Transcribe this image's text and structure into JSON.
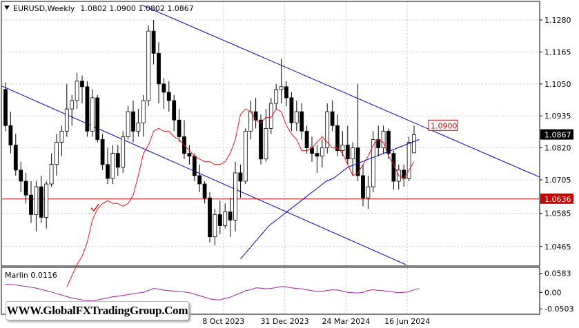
{
  "header": {
    "symbol": "EURUSD,Weekly",
    "ohlc": "1.0802 1.0900 1.0802 1.0867"
  },
  "watermark": "WWW.GlobalFXTradingGroup.Com",
  "indicator": {
    "label": "Marlin 0.0116"
  },
  "colors": {
    "candle": "#000000",
    "ma": "#e8141b",
    "trend": "#0000cc",
    "level": "#cc0000",
    "osc": "#a020a0",
    "grid": "#c8c8c8"
  },
  "chart_data": {
    "type": "candlestick",
    "price_ylim": [
      1.0405,
      1.1332
    ],
    "price_ticks": [
      "1.1280",
      "1.1165",
      "1.1050",
      "1.0935",
      "1.0820",
      "1.0705",
      "1.0585",
      "1.0465"
    ],
    "x_labels": [
      "8 Oct 2023",
      "31 Dec 2023",
      "24 Mar 2024",
      "16 Jun 2024"
    ],
    "x_label_index": [
      47,
      59,
      71,
      83
    ],
    "current_price": "1.0867",
    "level_label": "1.0636",
    "level_value": 1.0636,
    "target_label": "1.0900",
    "target_value": 1.09,
    "candles": [
      [
        1.103,
        1.1055,
        1.088,
        1.09
      ],
      [
        1.09,
        1.095,
        1.08,
        1.083
      ],
      [
        1.083,
        1.087,
        1.072,
        1.074
      ],
      [
        1.074,
        1.077,
        1.066,
        1.07
      ],
      [
        1.07,
        1.073,
        1.062,
        1.065
      ],
      [
        1.065,
        1.07,
        1.055,
        1.058
      ],
      [
        1.058,
        1.07,
        1.052,
        1.068
      ],
      [
        1.068,
        1.072,
        1.055,
        1.057
      ],
      [
        1.057,
        1.07,
        1.053,
        1.069
      ],
      [
        1.069,
        1.08,
        1.068,
        1.076
      ],
      [
        1.076,
        1.087,
        1.072,
        1.084
      ],
      [
        1.084,
        1.09,
        1.079,
        1.088
      ],
      [
        1.088,
        1.105,
        1.086,
        1.096
      ],
      [
        1.096,
        1.101,
        1.09,
        1.099
      ],
      [
        1.099,
        1.109,
        1.096,
        1.106
      ],
      [
        1.106,
        1.108,
        1.098,
        1.104
      ],
      [
        1.104,
        1.106,
        1.086,
        1.088
      ],
      [
        1.088,
        1.103,
        1.086,
        1.1
      ],
      [
        1.1,
        1.101,
        1.084,
        1.085
      ],
      [
        1.085,
        1.087,
        1.074,
        1.076
      ],
      [
        1.076,
        1.082,
        1.069,
        1.071
      ],
      [
        1.071,
        1.083,
        1.069,
        1.08
      ],
      [
        1.08,
        1.083,
        1.072,
        1.075
      ],
      [
        1.075,
        1.088,
        1.073,
        1.086
      ],
      [
        1.086,
        1.097,
        1.085,
        1.095
      ],
      [
        1.095,
        1.099,
        1.084,
        1.088
      ],
      [
        1.088,
        1.096,
        1.086,
        1.091
      ],
      [
        1.091,
        1.101,
        1.086,
        1.099
      ],
      [
        1.099,
        1.126,
        1.097,
        1.124
      ],
      [
        1.124,
        1.128,
        1.112,
        1.116
      ],
      [
        1.116,
        1.12,
        1.098,
        1.105
      ],
      [
        1.105,
        1.107,
        1.096,
        1.102
      ],
      [
        1.102,
        1.106,
        1.095,
        1.099
      ],
      [
        1.099,
        1.101,
        1.088,
        1.092
      ],
      [
        1.092,
        1.096,
        1.084,
        1.086
      ],
      [
        1.086,
        1.092,
        1.078,
        1.08
      ],
      [
        1.08,
        1.083,
        1.076,
        1.079
      ],
      [
        1.079,
        1.08,
        1.07,
        1.072
      ],
      [
        1.072,
        1.076,
        1.066,
        1.069
      ],
      [
        1.069,
        1.07,
        1.062,
        1.064
      ],
      [
        1.064,
        1.066,
        1.048,
        1.05
      ],
      [
        1.05,
        1.06,
        1.047,
        1.058
      ],
      [
        1.058,
        1.063,
        1.051,
        1.054
      ],
      [
        1.054,
        1.062,
        1.053,
        1.059
      ],
      [
        1.059,
        1.064,
        1.05,
        1.056
      ],
      [
        1.056,
        1.077,
        1.052,
        1.073
      ],
      [
        1.073,
        1.076,
        1.064,
        1.07
      ],
      [
        1.07,
        1.089,
        1.069,
        1.088
      ],
      [
        1.088,
        1.099,
        1.085,
        1.095
      ],
      [
        1.095,
        1.1,
        1.089,
        1.092
      ],
      [
        1.092,
        1.094,
        1.076,
        1.078
      ],
      [
        1.078,
        1.096,
        1.077,
        1.089
      ],
      [
        1.089,
        1.1,
        1.087,
        1.098
      ],
      [
        1.098,
        1.105,
        1.096,
        1.103
      ],
      [
        1.103,
        1.114,
        1.098,
        1.104
      ],
      [
        1.104,
        1.106,
        1.097,
        1.1
      ],
      [
        1.1,
        1.102,
        1.088,
        1.091
      ],
      [
        1.091,
        1.099,
        1.088,
        1.095
      ],
      [
        1.095,
        1.098,
        1.085,
        1.088
      ],
      [
        1.088,
        1.09,
        1.08,
        1.082
      ],
      [
        1.082,
        1.086,
        1.077,
        1.08
      ],
      [
        1.08,
        1.083,
        1.073,
        1.079
      ],
      [
        1.079,
        1.085,
        1.075,
        1.082
      ],
      [
        1.082,
        1.098,
        1.08,
        1.095
      ],
      [
        1.095,
        1.099,
        1.088,
        1.09
      ],
      [
        1.09,
        1.094,
        1.079,
        1.081
      ],
      [
        1.081,
        1.088,
        1.079,
        1.083
      ],
      [
        1.083,
        1.09,
        1.076,
        1.078
      ],
      [
        1.078,
        1.084,
        1.072,
        1.082
      ],
      [
        1.082,
        1.105,
        1.07,
        1.072
      ],
      [
        1.072,
        1.076,
        1.061,
        1.064
      ],
      [
        1.064,
        1.072,
        1.06,
        1.068
      ],
      [
        1.068,
        1.088,
        1.066,
        1.085
      ],
      [
        1.085,
        1.09,
        1.079,
        1.082
      ],
      [
        1.082,
        1.09,
        1.08,
        1.088
      ],
      [
        1.088,
        1.089,
        1.078,
        1.08
      ],
      [
        1.08,
        1.081,
        1.067,
        1.07
      ],
      [
        1.07,
        1.076,
        1.067,
        1.074
      ],
      [
        1.074,
        1.076,
        1.068,
        1.071
      ],
      [
        1.071,
        1.086,
        1.07,
        1.084
      ],
      [
        1.0802,
        1.09,
        1.0802,
        1.0867
      ]
    ],
    "ma_line": [
      [
        1.094,
        1.09,
        1.085,
        1.079,
        1.073,
        1.069,
        1.066,
        1.063,
        1.061,
        1.06,
        1.06,
        1.06,
        1.06,
        1.06,
        1.061,
        1.062,
        1.064,
        1.066,
        1.068,
        1.07,
        1.072
      ]
    ],
    "ma_x_start": 0,
    "ma": [
      1.032,
      1.036,
      1.04,
      1.043,
      1.048,
      1.056,
      1.06,
      1.062,
      1.063,
      1.062,
      1.062,
      1.061,
      1.062,
      1.065,
      1.072,
      1.08,
      1.083,
      1.088,
      1.089,
      1.088,
      1.088,
      1.086,
      1.085,
      1.083,
      1.081,
      1.079,
      1.078,
      1.077,
      1.077,
      1.076,
      1.076,
      1.077,
      1.08,
      1.085,
      1.094,
      1.096,
      1.095,
      1.092,
      1.091,
      1.093,
      1.093,
      1.096,
      1.095,
      1.09,
      1.087,
      1.085,
      1.081,
      1.081,
      1.082,
      1.084,
      1.086,
      1.084,
      1.082,
      1.082,
      1.08,
      1.076,
      1.072,
      1.073,
      1.076,
      1.079,
      1.083,
      1.085,
      1.084,
      1.079,
      1.076,
      1.072,
      1.071,
      1.074,
      1.077
    ],
    "osc_label_ticks": [
      "0.0583",
      "0.00",
      "-0.0503"
    ],
    "osc_ylim": [
      -0.0583,
      0.068
    ],
    "osc": [
      0.025,
      0.024,
      0.023,
      0.02,
      0.018,
      0.016,
      0.013,
      0.009,
      0.005,
      0.001,
      -0.004,
      -0.008,
      -0.013,
      -0.017,
      -0.02,
      -0.023,
      -0.025,
      -0.026,
      -0.023,
      -0.02,
      -0.017,
      -0.013,
      -0.012,
      -0.009,
      -0.007,
      -0.004,
      -0.002,
      0.0,
      0.006,
      0.012,
      0.01,
      0.007,
      0.005,
      0.004,
      0.002,
      0.001,
      -0.001,
      -0.005,
      -0.01,
      -0.015,
      -0.02,
      -0.022,
      -0.023,
      -0.018,
      -0.015,
      -0.008,
      -0.002,
      0.005,
      0.008,
      0.014,
      0.013,
      0.011,
      0.012,
      0.015,
      0.018,
      0.017,
      0.014,
      0.012,
      0.011,
      0.008,
      0.005,
      0.002,
      0.003,
      0.006,
      0.008,
      0.007,
      0.004,
      0.0,
      -0.001,
      -0.002,
      0.0,
      0.006,
      0.008,
      0.006,
      0.005,
      0.003,
      0.001,
      -0.001,
      0.0,
      0.002,
      0.008,
      0.0116
    ]
  }
}
